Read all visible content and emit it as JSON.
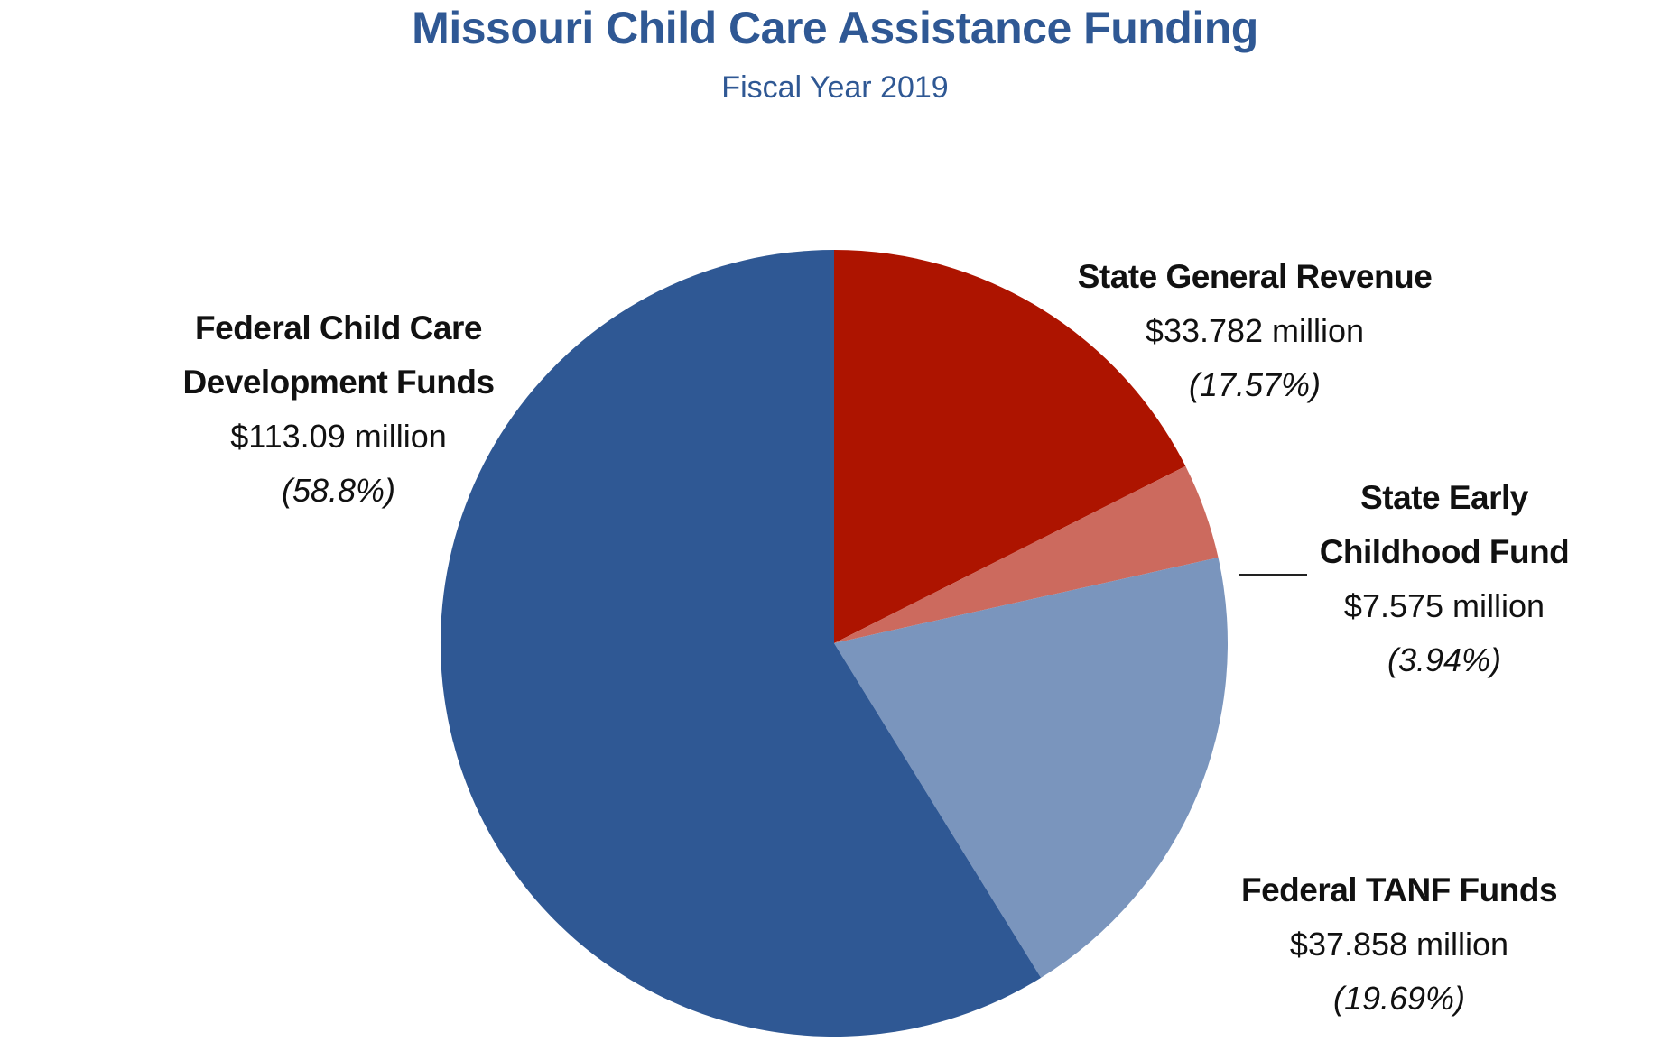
{
  "title": "Missouri Child Care Assistance Funding",
  "subtitle": "Fiscal Year 2019",
  "chart_data": {
    "type": "pie",
    "title": "Missouri Child Care Assistance Funding",
    "subtitle": "Fiscal Year 2019",
    "unit": "million",
    "slices": [
      {
        "name_lines": [
          "State General Revenue"
        ],
        "amount_label": "$33.782 million",
        "percent_label": "(17.57%)",
        "value": 33.782,
        "percent": 17.57,
        "color": "#ad1400"
      },
      {
        "name_lines": [
          "State Early",
          "Childhood Fund"
        ],
        "amount_label": "$7.575 million",
        "percent_label": "(3.94%)",
        "value": 7.575,
        "percent": 3.94,
        "color": "#cc6a5e"
      },
      {
        "name_lines": [
          "Federal TANF Funds"
        ],
        "amount_label": "$37.858 million",
        "percent_label": "(19.69%)",
        "value": 37.858,
        "percent": 19.69,
        "color": "#7a95bd"
      },
      {
        "name_lines": [
          "Federal Child Care",
          "Development Funds"
        ],
        "amount_label": "$113.09 million",
        "percent_label": "(58.8%)",
        "value": 113.09,
        "percent": 58.8,
        "color": "#2f5894"
      }
    ]
  }
}
